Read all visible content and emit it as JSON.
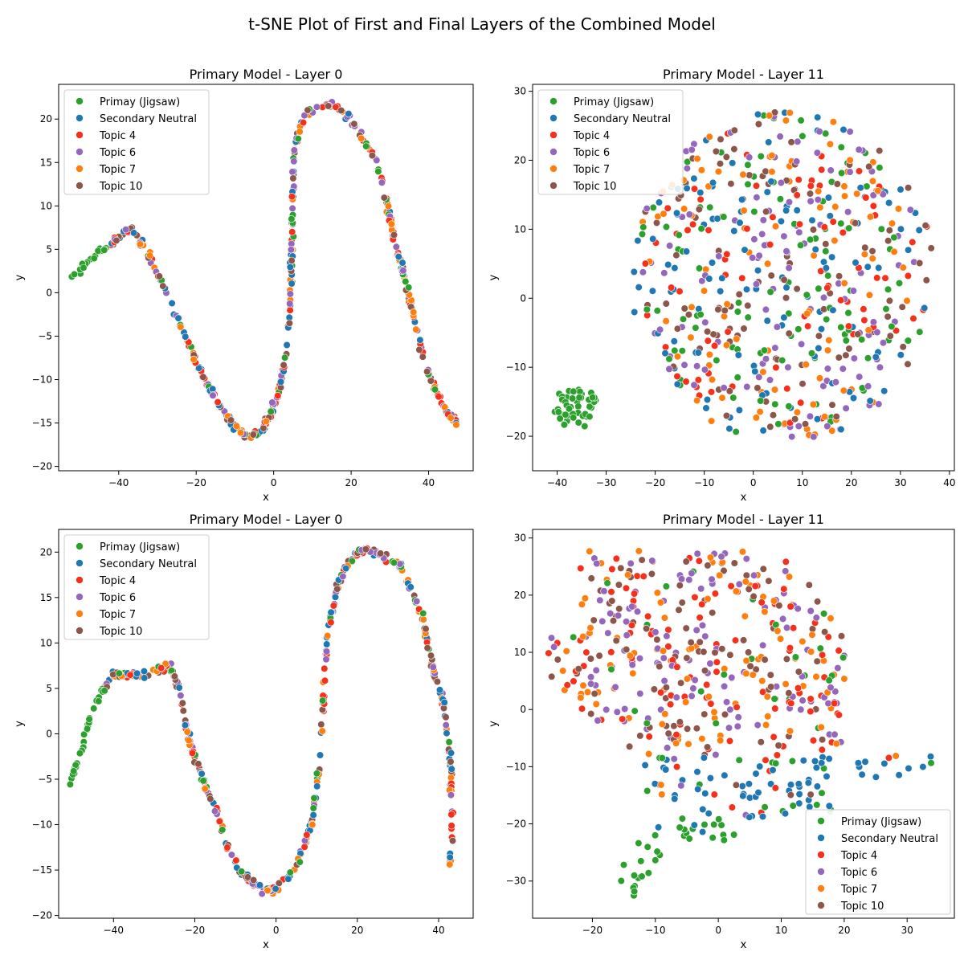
{
  "figure": {
    "title": "t-SNE Plot of First and Final Layers of the Combined Model"
  },
  "palette": {
    "Primay (Jigsaw)": "#2ca02c",
    "Secondary Neutral": "#1f77b4",
    "Topic 4": "#f5311c",
    "Topic 6": "#9467bd",
    "Topic 7": "#ff7f0e",
    "Topic 10": "#8c564b"
  },
  "chart_data": [
    {
      "type": "scatter",
      "title": "Primary Model - Layer 0",
      "xlabel": "x",
      "ylabel": "y",
      "xlim": [
        -55.5,
        51.5
      ],
      "ylim": [
        -20.5,
        24.0
      ],
      "xticks": [
        -40,
        -20,
        0,
        20,
        40
      ],
      "yticks": [
        -20,
        -15,
        -10,
        -5,
        0,
        5,
        10,
        15,
        20
      ],
      "grid": false,
      "legend": "upper-left",
      "series_names": [
        "Primay (Jigsaw)",
        "Secondary Neutral",
        "Topic 4",
        "Topic 6",
        "Topic 7",
        "Topic 10"
      ],
      "generator": "wave",
      "curve": [
        [
          -52,
          1.7
        ],
        [
          -46,
          4.2
        ],
        [
          -40,
          6.5
        ],
        [
          -37,
          7.4
        ],
        [
          -33,
          5.0
        ],
        [
          -29,
          1.3
        ],
        [
          -25,
          -2.8
        ],
        [
          -22,
          -6.0
        ],
        [
          -19,
          -8.8
        ],
        [
          -16,
          -11.6
        ],
        [
          -12,
          -14.3
        ],
        [
          -9,
          -16.0
        ],
        [
          -6,
          -16.7
        ],
        [
          -3,
          -15.8
        ],
        [
          -1,
          -14.2
        ],
        [
          1,
          -12.0
        ],
        [
          3,
          -8.0
        ],
        [
          4,
          -3.0
        ],
        [
          4.5,
          1.5
        ],
        [
          4.8,
          7.0
        ],
        [
          5,
          12.0
        ],
        [
          5.3,
          16.5
        ],
        [
          8,
          20.5
        ],
        [
          12,
          21.5
        ],
        [
          16,
          21.6
        ],
        [
          20,
          19.8
        ],
        [
          24,
          17.2
        ],
        [
          27,
          14.5
        ],
        [
          29,
          10.5
        ],
        [
          31,
          6.5
        ],
        [
          33,
          3.0
        ],
        [
          35,
          -0.5
        ],
        [
          37,
          -4.5
        ],
        [
          39,
          -8.0
        ],
        [
          41,
          -10.5
        ],
        [
          43,
          -12.3
        ],
        [
          45,
          -14.0
        ],
        [
          47.5,
          -14.8
        ]
      ],
      "points": 460,
      "seed": 11,
      "jitter": [
        0.5,
        0.6
      ],
      "green_until": -43
    },
    {
      "type": "scatter",
      "title": "Primary Model - Layer 11",
      "xlabel": "x",
      "ylabel": "y",
      "xlim": [
        -45,
        41
      ],
      "ylim": [
        -25,
        31
      ],
      "xticks": [
        -40,
        -30,
        -20,
        -10,
        0,
        10,
        20,
        30,
        40
      ],
      "yticks": [
        -20,
        -10,
        0,
        10,
        20,
        30
      ],
      "grid": false,
      "legend": "upper-left",
      "series_names": [
        "Primay (Jigsaw)",
        "Secondary Neutral",
        "Topic 4",
        "Topic 6",
        "Topic 7",
        "Topic 10"
      ],
      "generator": "blob",
      "seed": 23,
      "points": 620,
      "ellipse": {
        "cx": 6,
        "cy": 3,
        "rx": 31,
        "ry": 24
      },
      "cluster": {
        "cx": -36,
        "cy": -15.8,
        "rx": 5,
        "ry": 3,
        "n": 48
      }
    },
    {
      "type": "scatter",
      "title": "Primary Model - Layer 0",
      "xlabel": "x",
      "ylabel": "y",
      "xlim": [
        -53.5,
        48.5
      ],
      "ylim": [
        -20.3,
        22.5
      ],
      "xticks": [
        -40,
        -20,
        0,
        20,
        40
      ],
      "yticks": [
        -20,
        -15,
        -10,
        -5,
        0,
        5,
        10,
        15,
        20
      ],
      "grid": false,
      "legend": "upper-left",
      "series_names": [
        "Primay (Jigsaw)",
        "Secondary Neutral",
        "Topic 4",
        "Topic 6",
        "Topic 7",
        "Topic 10"
      ],
      "generator": "wave",
      "curve": [
        [
          -50.5,
          -5.3
        ],
        [
          -48,
          -2.0
        ],
        [
          -46,
          1.5
        ],
        [
          -43,
          4.5
        ],
        [
          -40,
          6.5
        ],
        [
          -36,
          6.5
        ],
        [
          -33,
          6.5
        ],
        [
          -29,
          7.0
        ],
        [
          -26,
          7.5
        ],
        [
          -24,
          5.0
        ],
        [
          -22,
          0.5
        ],
        [
          -20,
          -2.5
        ],
        [
          -18,
          -5.0
        ],
        [
          -15,
          -8.0
        ],
        [
          -12,
          -12.5
        ],
        [
          -9,
          -15.0
        ],
        [
          -6,
          -16.3
        ],
        [
          -3,
          -17.2
        ],
        [
          0,
          -17.0
        ],
        [
          3,
          -15.8
        ],
        [
          6,
          -13.5
        ],
        [
          9,
          -9.5
        ],
        [
          10.5,
          -4.0
        ],
        [
          11.5,
          2.0
        ],
        [
          12,
          7.0
        ],
        [
          13,
          12.0
        ],
        [
          15,
          16.0
        ],
        [
          17,
          18.5
        ],
        [
          21,
          20.3
        ],
        [
          25,
          19.8
        ],
        [
          29,
          19.0
        ],
        [
          31,
          18.2
        ],
        [
          34,
          15.0
        ],
        [
          36,
          13.0
        ],
        [
          37.5,
          9.5
        ],
        [
          39,
          6.5
        ],
        [
          41,
          4.0
        ],
        [
          42,
          0.5
        ],
        [
          43,
          -3.0
        ],
        [
          43.2,
          -7.0
        ],
        [
          43.4,
          -12.0
        ],
        [
          42.5,
          -14.8
        ]
      ],
      "points": 470,
      "seed": 37,
      "jitter": [
        0.5,
        0.6
      ],
      "green_until": -42
    },
    {
      "type": "scatter",
      "title": "Primary Model - Layer 11",
      "xlabel": "x",
      "ylabel": "y",
      "xlim": [
        -29.5,
        37.5
      ],
      "ylim": [
        -36.5,
        31.5
      ],
      "xticks": [
        -20,
        -10,
        0,
        10,
        20,
        30
      ],
      "yticks": [
        -30,
        -20,
        -10,
        0,
        10,
        20,
        30
      ],
      "grid": false,
      "legend": "lower-right",
      "series_names": [
        "Primay (Jigsaw)",
        "Secondary Neutral",
        "Topic 4",
        "Topic 6",
        "Topic 7",
        "Topic 10"
      ],
      "generator": "blob2",
      "seed": 53,
      "points": 560
    }
  ]
}
